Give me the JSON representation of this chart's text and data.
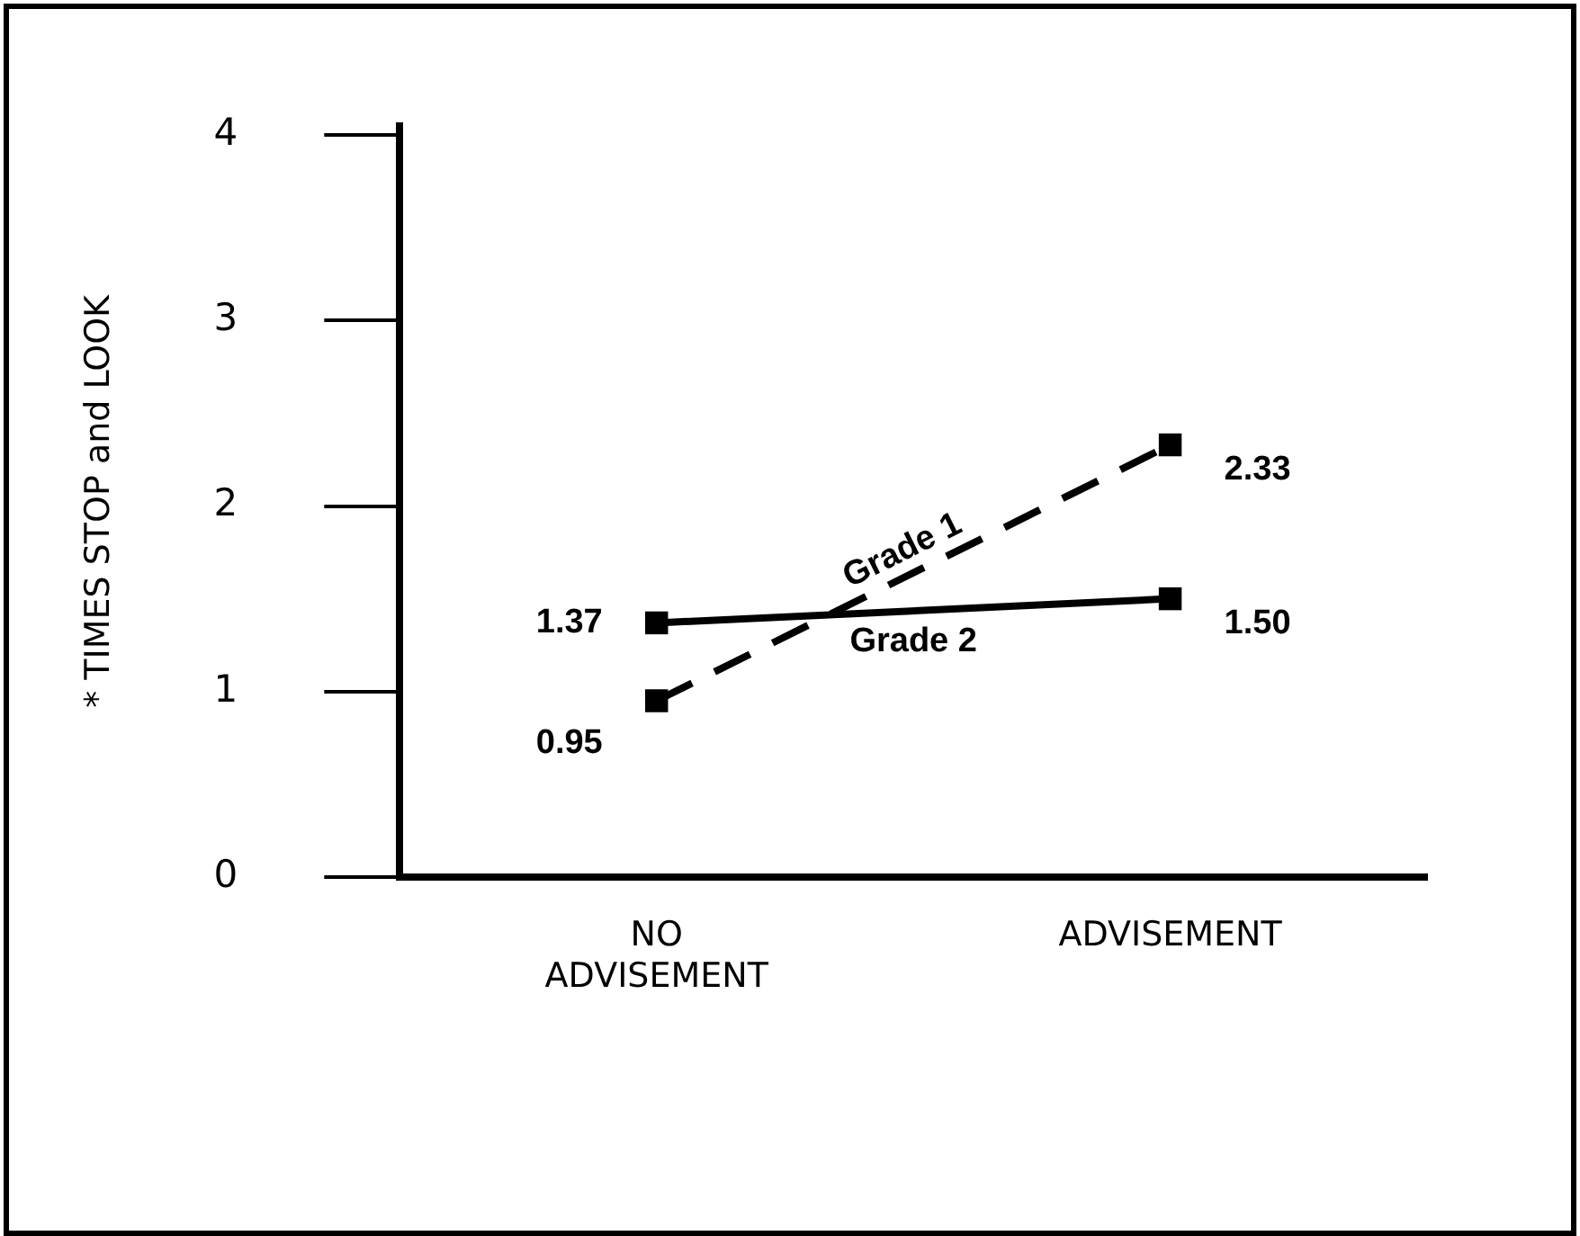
{
  "chart_data": {
    "type": "line",
    "ylabel": "* TIMES STOP and LOOK",
    "categories": [
      "NO\nADVISEMENT",
      "ADVISEMENT"
    ],
    "ylim": [
      0,
      4.05
    ],
    "yticks": [
      0,
      1,
      2,
      3,
      4
    ],
    "grid": false,
    "legend": false,
    "marker": "square",
    "series": [
      {
        "name": "Grade 1",
        "color": "#000000",
        "line_style": "dashed",
        "values": [
          0.95,
          2.33
        ],
        "value_labels": [
          "0.95",
          "2.33"
        ]
      },
      {
        "name": "Grade 2",
        "color": "#000000",
        "line_style": "solid",
        "values": [
          1.37,
          1.5
        ],
        "value_labels": [
          "1.37",
          "1.50"
        ]
      }
    ]
  }
}
